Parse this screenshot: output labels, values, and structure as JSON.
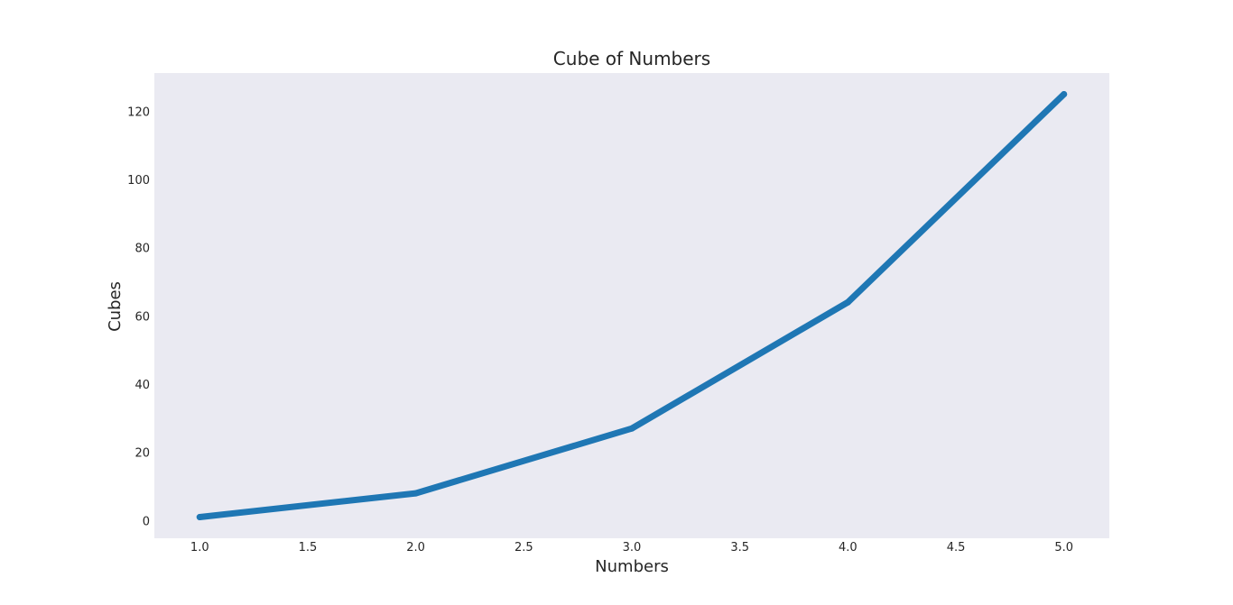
{
  "chart_data": {
    "type": "line",
    "title": "Cube of Numbers",
    "xlabel": "Numbers",
    "ylabel": "Cubes",
    "x": [
      1,
      2,
      3,
      4,
      5
    ],
    "series": [
      {
        "values": [
          1,
          8,
          27,
          64,
          125
        ],
        "color": "#1f77b4"
      }
    ],
    "xlim": [
      0.79,
      5.21
    ],
    "ylim": [
      -5.2,
      131.2
    ],
    "xticks": [
      "1.0",
      "1.5",
      "2.0",
      "2.5",
      "3.0",
      "3.5",
      "4.0",
      "4.5",
      "5.0"
    ],
    "yticks": [
      "0",
      "20",
      "40",
      "60",
      "80",
      "100",
      "120"
    ],
    "grid": false,
    "plot_background": "#eaeaf2"
  }
}
